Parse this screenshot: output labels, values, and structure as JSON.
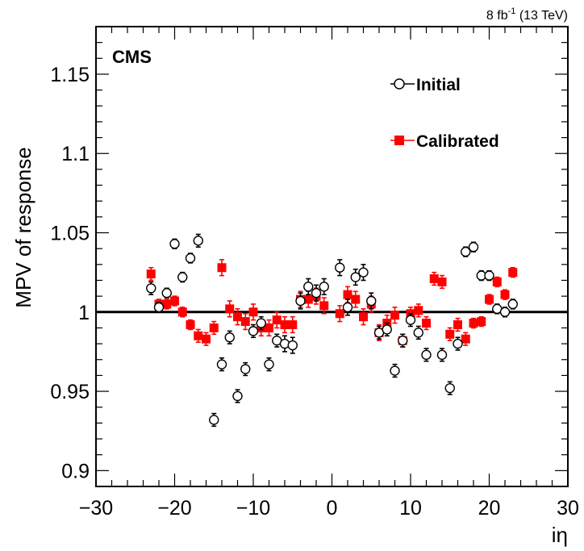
{
  "chart_data": {
    "type": "scatter",
    "lumi_label": "8 fb",
    "lumi_sup": "-1",
    "lumi_energy": " (13 TeV)",
    "experiment_label": "CMS",
    "xlabel": "iη",
    "ylabel": "MPV of response",
    "xlim": [
      -30,
      30
    ],
    "ylim": [
      0.89,
      1.18
    ],
    "x_ticks": [
      "−30",
      "−20",
      "−10",
      "0",
      "10",
      "20",
      "30"
    ],
    "y_ticks": [
      "0.9",
      "0.95",
      "1",
      "1.05",
      "1.1",
      "1.15"
    ],
    "reference_line": 1.0,
    "legend_position": "top-right",
    "colors": {
      "initial": "#000000",
      "calibrated": "#ff0000",
      "reference": "#000000"
    },
    "series": [
      {
        "name": "Initial",
        "marker": "open-circle",
        "points": [
          {
            "x": -23,
            "y": 1.015,
            "err": 0.004
          },
          {
            "x": -22,
            "y": 1.003,
            "err": 0.003
          },
          {
            "x": -21,
            "y": 1.012,
            "err": 0.003
          },
          {
            "x": -20,
            "y": 1.043,
            "err": 0.003
          },
          {
            "x": -19,
            "y": 1.022,
            "err": 0.003
          },
          {
            "x": -18,
            "y": 1.034,
            "err": 0.003
          },
          {
            "x": -17,
            "y": 1.045,
            "err": 0.004
          },
          {
            "x": -15,
            "y": 0.932,
            "err": 0.004
          },
          {
            "x": -14,
            "y": 0.967,
            "err": 0.004
          },
          {
            "x": -13,
            "y": 0.984,
            "err": 0.004
          },
          {
            "x": -12,
            "y": 0.947,
            "err": 0.004
          },
          {
            "x": -11,
            "y": 0.964,
            "err": 0.004
          },
          {
            "x": -10,
            "y": 0.988,
            "err": 0.004
          },
          {
            "x": -9,
            "y": 0.993,
            "err": 0.004
          },
          {
            "x": -8,
            "y": 0.967,
            "err": 0.004
          },
          {
            "x": -7,
            "y": 0.982,
            "err": 0.004
          },
          {
            "x": -6,
            "y": 0.98,
            "err": 0.005
          },
          {
            "x": -5,
            "y": 0.979,
            "err": 0.005
          },
          {
            "x": -4,
            "y": 1.007,
            "err": 0.005
          },
          {
            "x": -3,
            "y": 1.016,
            "err": 0.005
          },
          {
            "x": -2,
            "y": 1.012,
            "err": 0.005
          },
          {
            "x": -1,
            "y": 1.016,
            "err": 0.005
          },
          {
            "x": 1,
            "y": 1.028,
            "err": 0.005
          },
          {
            "x": 2,
            "y": 1.003,
            "err": 0.005
          },
          {
            "x": 3,
            "y": 1.022,
            "err": 0.005
          },
          {
            "x": 4,
            "y": 1.025,
            "err": 0.005
          },
          {
            "x": 5,
            "y": 1.007,
            "err": 0.005
          },
          {
            "x": 6,
            "y": 0.987,
            "err": 0.004
          },
          {
            "x": 7,
            "y": 0.989,
            "err": 0.004
          },
          {
            "x": 8,
            "y": 0.963,
            "err": 0.004
          },
          {
            "x": 9,
            "y": 0.982,
            "err": 0.004
          },
          {
            "x": 10,
            "y": 0.995,
            "err": 0.004
          },
          {
            "x": 11,
            "y": 0.987,
            "err": 0.004
          },
          {
            "x": 12,
            "y": 0.973,
            "err": 0.004
          },
          {
            "x": 14,
            "y": 0.973,
            "err": 0.004
          },
          {
            "x": 15,
            "y": 0.952,
            "err": 0.004
          },
          {
            "x": 16,
            "y": 0.98,
            "err": 0.004
          },
          {
            "x": 17,
            "y": 1.038,
            "err": 0.003
          },
          {
            "x": 18,
            "y": 1.041,
            "err": 0.003
          },
          {
            "x": 19,
            "y": 1.023,
            "err": 0.003
          },
          {
            "x": 20,
            "y": 1.023,
            "err": 0.003
          },
          {
            "x": 21,
            "y": 1.002,
            "err": 0.003
          },
          {
            "x": 22,
            "y": 1.0,
            "err": 0.003
          },
          {
            "x": 23,
            "y": 1.005,
            "err": 0.003
          }
        ]
      },
      {
        "name": "Calibrated",
        "marker": "filled-square",
        "points": [
          {
            "x": -23,
            "y": 1.024,
            "err": 0.004
          },
          {
            "x": -22,
            "y": 1.005,
            "err": 0.003
          },
          {
            "x": -21,
            "y": 1.005,
            "err": 0.003
          },
          {
            "x": -20,
            "y": 1.007,
            "err": 0.003
          },
          {
            "x": -19,
            "y": 1.0,
            "err": 0.003
          },
          {
            "x": -18,
            "y": 0.992,
            "err": 0.003
          },
          {
            "x": -17,
            "y": 0.985,
            "err": 0.004
          },
          {
            "x": -16,
            "y": 0.983,
            "err": 0.004
          },
          {
            "x": -15,
            "y": 0.99,
            "err": 0.004
          },
          {
            "x": -14,
            "y": 1.028,
            "err": 0.005
          },
          {
            "x": -13,
            "y": 1.002,
            "err": 0.005
          },
          {
            "x": -12,
            "y": 0.997,
            "err": 0.005
          },
          {
            "x": -11,
            "y": 0.994,
            "err": 0.005
          },
          {
            "x": -10,
            "y": 1.0,
            "err": 0.005
          },
          {
            "x": -9,
            "y": 0.99,
            "err": 0.005
          },
          {
            "x": -8,
            "y": 0.99,
            "err": 0.005
          },
          {
            "x": -7,
            "y": 0.995,
            "err": 0.005
          },
          {
            "x": -6,
            "y": 0.992,
            "err": 0.005
          },
          {
            "x": -5,
            "y": 0.992,
            "err": 0.005
          },
          {
            "x": -4,
            "y": 1.008,
            "err": 0.005
          },
          {
            "x": -3,
            "y": 1.008,
            "err": 0.005
          },
          {
            "x": -2,
            "y": 1.01,
            "err": 0.005
          },
          {
            "x": -1,
            "y": 1.004,
            "err": 0.005
          },
          {
            "x": 1,
            "y": 0.999,
            "err": 0.005
          },
          {
            "x": 2,
            "y": 1.011,
            "err": 0.005
          },
          {
            "x": 3,
            "y": 1.008,
            "err": 0.005
          },
          {
            "x": 4,
            "y": 0.997,
            "err": 0.005
          },
          {
            "x": 5,
            "y": 1.005,
            "err": 0.005
          },
          {
            "x": 6,
            "y": 0.987,
            "err": 0.005
          },
          {
            "x": 7,
            "y": 0.993,
            "err": 0.005
          },
          {
            "x": 8,
            "y": 0.998,
            "err": 0.005
          },
          {
            "x": 9,
            "y": 0.982,
            "err": 0.004
          },
          {
            "x": 10,
            "y": 0.999,
            "err": 0.004
          },
          {
            "x": 11,
            "y": 1.001,
            "err": 0.004
          },
          {
            "x": 12,
            "y": 0.993,
            "err": 0.004
          },
          {
            "x": 13,
            "y": 1.021,
            "err": 0.004
          },
          {
            "x": 14,
            "y": 1.019,
            "err": 0.004
          },
          {
            "x": 15,
            "y": 0.986,
            "err": 0.004
          },
          {
            "x": 16,
            "y": 0.992,
            "err": 0.004
          },
          {
            "x": 17,
            "y": 0.983,
            "err": 0.004
          },
          {
            "x": 18,
            "y": 0.993,
            "err": 0.003
          },
          {
            "x": 19,
            "y": 0.994,
            "err": 0.003
          },
          {
            "x": 20,
            "y": 1.008,
            "err": 0.003
          },
          {
            "x": 21,
            "y": 1.019,
            "err": 0.003
          },
          {
            "x": 22,
            "y": 1.011,
            "err": 0.003
          },
          {
            "x": 23,
            "y": 1.025,
            "err": 0.003
          }
        ]
      }
    ]
  }
}
